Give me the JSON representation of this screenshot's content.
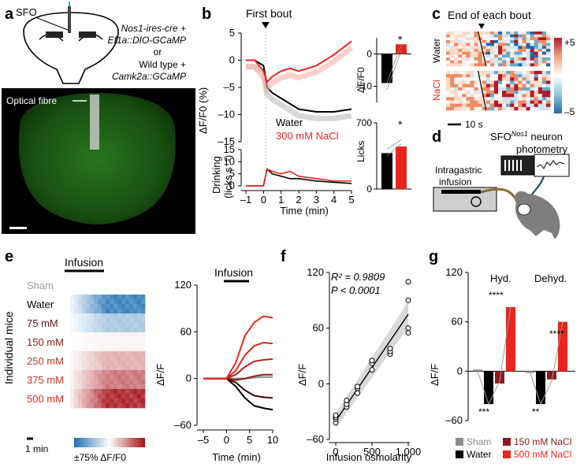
{
  "panels": {
    "a": {
      "label": "a",
      "region": "SFO",
      "line1": "Nos1-ires-cre +",
      "line2": "Ef1a::DIO-GCaMP",
      "line3": "or",
      "line4": "Wild type +",
      "line5": "Camk2a::GCaMP",
      "fibre_label": "Optical fibre"
    },
    "b": {
      "label": "b",
      "event_label": "First bout",
      "ylabel_top": "ΔF/F0 (%)",
      "ylabel_bottom_1": "Drinking",
      "ylabel_bottom_2": "(licks s⁻¹)",
      "xlabel": "Time (min)",
      "legend_water": "Water",
      "legend_nacl": "300 mM NaCl",
      "bar_ylabel_top": "ΔF/F0",
      "bar_ylabel_bottom": "Licks",
      "sig": "*"
    },
    "c": {
      "label": "c",
      "title": "End of each bout",
      "row_water": "Water",
      "row_nacl": "NaCl",
      "cbar_max": "+5",
      "cbar_min": "–5",
      "scale": "10 s"
    },
    "d": {
      "label": "d",
      "title_main": "SFO",
      "title_sup": "Nos1",
      "title_rest": " neuron",
      "title_line2": "photometry",
      "infusion_1": "Intragastric",
      "infusion_2": "infusion"
    },
    "e": {
      "label": "e",
      "infusion": "Infusion",
      "ylabel": "Individual mice",
      "rows": [
        "Sham",
        "Water",
        "75 mM",
        "150 mM",
        "250 mM",
        "375 mM",
        "500 mM"
      ],
      "scale": "1 min",
      "cbar_label": "±75% ΔF/F0"
    },
    "f": {
      "label": "f",
      "r2": "R² = 0.9809",
      "p": "P < 0.0001",
      "xlabel": "Infusion osmolarity",
      "ylabel": "ΔF/F0 (%)"
    },
    "g": {
      "label": "g",
      "hyd": "Hyd.",
      "dehyd": "Dehyd.",
      "ylabel": "ΔF/F0 (%)",
      "legend_sham": "Sham",
      "legend_water": "Water",
      "legend_150": "150 mM NaCl",
      "legend_500": "500 mM NaCl",
      "sig_hyd_500": "****",
      "sig_hyd_water": "***",
      "sig_dehyd_500": "****",
      "sig_dehyd_water": "**"
    }
  },
  "colors": {
    "water": "#000000",
    "nacl": "#e8261f",
    "sham": "#8c8c8c",
    "nacl150": "#8b1a1a",
    "dark_red": "#5a0d0d"
  },
  "chart_data": [
    {
      "id": "b_top",
      "type": "line",
      "xlabel": "Time (min)",
      "ylabel": "ΔF/F0 (%)",
      "xlim": [
        -1,
        5
      ],
      "ylim": [
        -15,
        5
      ],
      "series": [
        {
          "name": "Water",
          "x": [
            -1,
            -0.5,
            0,
            0.2,
            0.5,
            1,
            1.5,
            2,
            3,
            4,
            5
          ],
          "y": [
            0,
            0,
            -1,
            -5,
            -6,
            -7,
            -8,
            -9,
            -9.5,
            -9.5,
            -9
          ]
        },
        {
          "name": "300 mM NaCl",
          "x": [
            -1,
            -0.5,
            0,
            0.2,
            0.5,
            1,
            1.5,
            2,
            3,
            4,
            5
          ],
          "y": [
            0,
            0,
            -2,
            -4,
            -3,
            -2,
            -1.5,
            -2,
            -1,
            1,
            3.5
          ]
        }
      ]
    },
    {
      "id": "b_bottom",
      "type": "line",
      "ylabel": "Drinking (licks s⁻¹)",
      "xlim": [
        -1,
        5
      ],
      "ylim": [
        0,
        15
      ],
      "series": [
        {
          "name": "Water",
          "x": [
            -1,
            0,
            0.2,
            0.5,
            1,
            1.5,
            2,
            3,
            4,
            5
          ],
          "y": [
            0,
            0,
            7,
            5,
            4,
            3,
            3,
            2,
            1.5,
            1
          ]
        },
        {
          "name": "300 mM NaCl",
          "x": [
            -1,
            0,
            0.2,
            0.5,
            1,
            1.5,
            2,
            3,
            4,
            5
          ],
          "y": [
            0,
            0,
            7,
            6,
            5,
            6,
            4,
            3,
            2,
            2
          ]
        }
      ]
    },
    {
      "id": "b_bar_df",
      "type": "bar",
      "ylabel": "ΔF/F0",
      "ylim": [
        -15,
        5
      ],
      "categories": [
        "Water",
        "300 mM NaCl"
      ],
      "values": [
        -9,
        3
      ]
    },
    {
      "id": "b_bar_licks",
      "type": "bar",
      "ylabel": "Licks",
      "ylim": [
        0,
        700
      ],
      "categories": [
        "Water",
        "300 mM NaCl"
      ],
      "values": [
        380,
        450
      ]
    },
    {
      "id": "e_traces",
      "type": "line",
      "xlabel": "Time (min)",
      "ylabel": "ΔF/F0 (%)",
      "xlim": [
        -5,
        10
      ],
      "ylim": [
        -60,
        120
      ],
      "series": [
        {
          "name": "Sham",
          "x": [
            -5,
            0,
            2,
            4,
            6,
            8,
            10
          ],
          "y": [
            0,
            0,
            0,
            0,
            1,
            2,
            2
          ]
        },
        {
          "name": "Water",
          "x": [
            -5,
            0,
            2,
            4,
            6,
            8,
            10
          ],
          "y": [
            0,
            0,
            -10,
            -25,
            -35,
            -38,
            -40
          ]
        },
        {
          "name": "75 mM",
          "x": [
            -5,
            0,
            2,
            4,
            6,
            8,
            10
          ],
          "y": [
            0,
            0,
            -5,
            -15,
            -22,
            -24,
            -25
          ]
        },
        {
          "name": "150 mM",
          "x": [
            -5,
            0,
            2,
            4,
            6,
            8,
            10
          ],
          "y": [
            0,
            0,
            -2,
            0,
            3,
            5,
            5
          ]
        },
        {
          "name": "250 mM",
          "x": [
            -5,
            0,
            2,
            4,
            6,
            8,
            10
          ],
          "y": [
            0,
            0,
            5,
            15,
            22,
            24,
            25
          ]
        },
        {
          "name": "375 mM",
          "x": [
            -5,
            0,
            2,
            4,
            6,
            8,
            10
          ],
          "y": [
            0,
            0,
            10,
            30,
            42,
            46,
            45
          ]
        },
        {
          "name": "500 mM",
          "x": [
            -5,
            0,
            2,
            4,
            6,
            8,
            10
          ],
          "y": [
            0,
            0,
            20,
            55,
            72,
            80,
            78
          ]
        }
      ]
    },
    {
      "id": "f_scatter",
      "type": "scatter",
      "xlabel": "Infusion osmolarity",
      "ylabel": "ΔF/F0 (%)",
      "xlim": [
        0,
        1000
      ],
      "ylim": [
        -60,
        120
      ],
      "x": [
        0,
        0,
        0,
        0,
        150,
        150,
        150,
        300,
        300,
        300,
        500,
        500,
        500,
        750,
        750,
        750,
        1000,
        1000,
        1000,
        1000
      ],
      "y": [
        -42,
        -38,
        -36,
        -34,
        -25,
        -22,
        -18,
        -10,
        -5,
        -3,
        15,
        22,
        25,
        32,
        35,
        38,
        55,
        60,
        90,
        110
      ],
      "fit": {
        "x": [
          0,
          1000
        ],
        "y": [
          -40,
          75
        ]
      }
    },
    {
      "id": "g_bars",
      "type": "bar",
      "ylabel": "ΔF/F0 (%)",
      "ylim": [
        -60,
        120
      ],
      "categories": [
        "Hyd.",
        "Dehyd."
      ],
      "series": [
        {
          "name": "Sham",
          "values": [
            2,
            -2
          ]
        },
        {
          "name": "Water",
          "values": [
            -40,
            -40
          ]
        },
        {
          "name": "150 mM NaCl",
          "values": [
            -15,
            -10
          ]
        },
        {
          "name": "500 mM NaCl",
          "values": [
            78,
            60
          ]
        }
      ]
    }
  ]
}
